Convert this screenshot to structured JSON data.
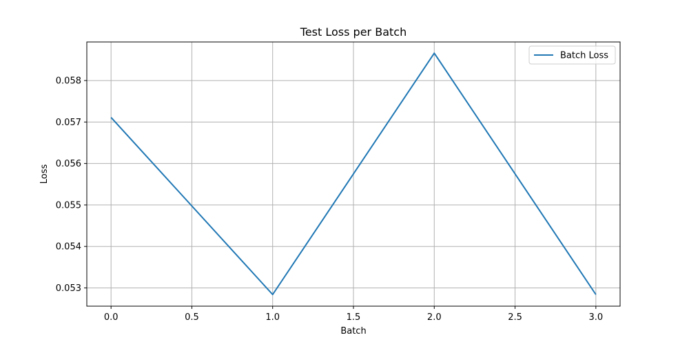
{
  "chart_data": {
    "type": "line",
    "title": "Test Loss per Batch",
    "xlabel": "Batch",
    "ylabel": "Loss",
    "x": [
      0,
      1,
      2,
      3
    ],
    "series": [
      {
        "name": "Batch Loss",
        "values": [
          0.05711,
          0.05284,
          0.05866,
          0.05284
        ],
        "color": "#1f77b4"
      }
    ],
    "xlim": [
      -0.15,
      3.15
    ],
    "ylim": [
      0.05256,
      0.05893
    ],
    "xticks": [
      0,
      0.5,
      1,
      1.5,
      2,
      2.5,
      3
    ],
    "xtick_labels": [
      "0.0",
      "0.5",
      "1.0",
      "1.5",
      "2.0",
      "2.5",
      "3.0"
    ],
    "yticks": [
      0.053,
      0.054,
      0.055,
      0.056,
      0.057,
      0.058
    ],
    "ytick_labels": [
      "0.053",
      "0.054",
      "0.055",
      "0.056",
      "0.057",
      "0.058"
    ],
    "grid": true,
    "legend_position": "top-right",
    "colors": {
      "grid": "#b0b0b0",
      "axes": "#000000"
    }
  }
}
